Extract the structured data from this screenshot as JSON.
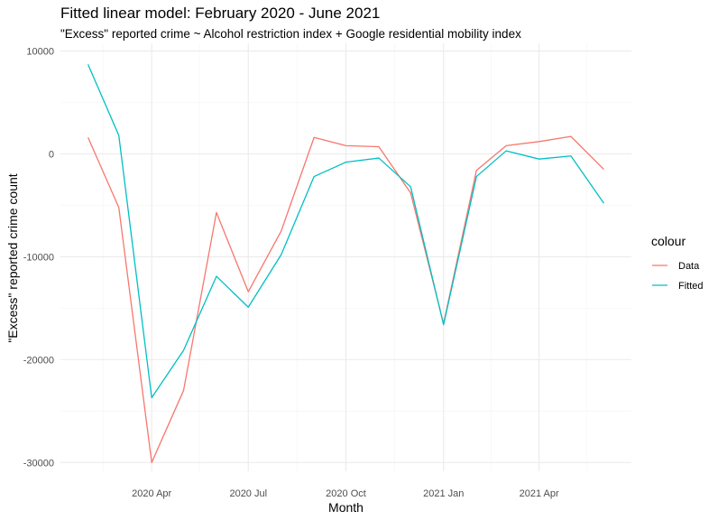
{
  "chart_data": {
    "type": "line",
    "title": "Fitted linear model: February 2020 - June 2021",
    "subtitle": "\"Excess\" reported crime ~ Alcohol restriction index + Google residential mobility index",
    "xlabel": "Month",
    "ylabel": "\"Excess\" reported crime count",
    "x": [
      "2020-02-01",
      "2020-03-01",
      "2020-04-01",
      "2020-05-01",
      "2020-06-01",
      "2020-07-01",
      "2020-08-01",
      "2020-09-01",
      "2020-10-01",
      "2020-11-01",
      "2020-12-01",
      "2021-01-01",
      "2021-02-01",
      "2021-03-01",
      "2021-04-01",
      "2021-05-01",
      "2021-06-01"
    ],
    "x_ticks": [
      {
        "date": "2020-04-01",
        "label": "2020 Apr"
      },
      {
        "date": "2020-07-01",
        "label": "2020 Jul"
      },
      {
        "date": "2020-10-01",
        "label": "2020 Oct"
      },
      {
        "date": "2021-01-01",
        "label": "2021 Jan"
      },
      {
        "date": "2021-04-01",
        "label": "2021 Apr"
      }
    ],
    "x_minor_ticks": [
      "2020-02-15",
      "2020-05-16",
      "2020-08-16",
      "2020-11-16",
      "2021-02-15",
      "2021-05-16"
    ],
    "y_ticks": [
      {
        "value": 10000,
        "label": "10000"
      },
      {
        "value": 0,
        "label": "0"
      },
      {
        "value": -10000,
        "label": "-10000"
      },
      {
        "value": -20000,
        "label": "-20000"
      },
      {
        "value": -30000,
        "label": "-30000"
      }
    ],
    "y_minor_ticks": [
      5000,
      -5000,
      -15000,
      -25000
    ],
    "xlim": [
      "2020-01-06",
      "2021-06-27"
    ],
    "ylim": [
      -30850,
      10750
    ],
    "legend_title": "colour",
    "legend_position": "right",
    "grid": true,
    "series": [
      {
        "name": "Data",
        "color": "#F8766D",
        "values": [
          1600,
          -5200,
          -30000,
          -23000,
          -5700,
          -13400,
          -7500,
          1600,
          800,
          700,
          -3800,
          -16500,
          -1600,
          800,
          1200,
          1700,
          -1500
        ]
      },
      {
        "name": "Fitted",
        "color": "#00BFC4",
        "values": [
          8700,
          1800,
          -23700,
          -19100,
          -11900,
          -14900,
          -9800,
          -2200,
          -800,
          -400,
          -3200,
          -16600,
          -2200,
          300,
          -500,
          -200,
          -4800
        ]
      }
    ]
  }
}
